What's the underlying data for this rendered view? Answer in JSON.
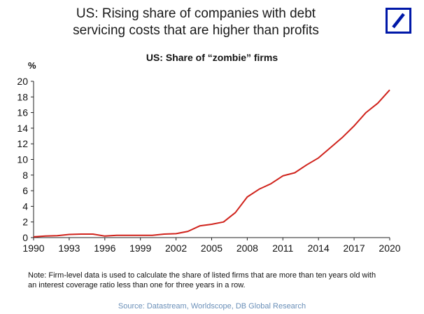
{
  "header": {
    "title_line1": "US: Rising share of companies with debt",
    "title_line2": "servicing costs that are higher than profits",
    "logo_colors": {
      "border": "#0018A8",
      "slash": "#0018A8"
    }
  },
  "chart_data": {
    "type": "line",
    "title": "US: Share of “zombie” firms",
    "ylabel": "%",
    "xlabel": "",
    "xlim": [
      1990,
      2020
    ],
    "ylim": [
      0,
      20
    ],
    "x_ticks": [
      "1990",
      "1993",
      "1996",
      "1999",
      "2002",
      "2005",
      "2008",
      "2011",
      "2014",
      "2017",
      "2020"
    ],
    "y_ticks": [
      "0",
      "2",
      "4",
      "6",
      "8",
      "10",
      "12",
      "14",
      "16",
      "18",
      "20"
    ],
    "grid": false,
    "series": [
      {
        "color": "#d0231c",
        "x": [
          1990,
          1991,
          1992,
          1993,
          1994,
          1995,
          1996,
          1997,
          1998,
          1999,
          2000,
          2001,
          2002,
          2003,
          2004,
          2005,
          2006,
          2007,
          2008,
          2009,
          2010,
          2011,
          2012,
          2013,
          2014,
          2015,
          2016,
          2017,
          2018,
          2019,
          2020
        ],
        "y": [
          0.1,
          0.2,
          0.25,
          0.4,
          0.45,
          0.45,
          0.2,
          0.3,
          0.3,
          0.3,
          0.3,
          0.45,
          0.5,
          0.8,
          1.5,
          1.7,
          2.0,
          3.2,
          5.2,
          6.2,
          6.9,
          7.9,
          8.3,
          9.3,
          10.2,
          11.5,
          12.8,
          14.3,
          16.0,
          17.2,
          18.9
        ]
      }
    ]
  },
  "footer": {
    "note_line1": "Note: Firm-level data is used to calculate the share of listed firms that are more than ten years old with",
    "note_line2": "an interest coverage ratio less than one for three years in a row.",
    "source": "Source: Datastream, Worldscope, DB Global Research"
  }
}
